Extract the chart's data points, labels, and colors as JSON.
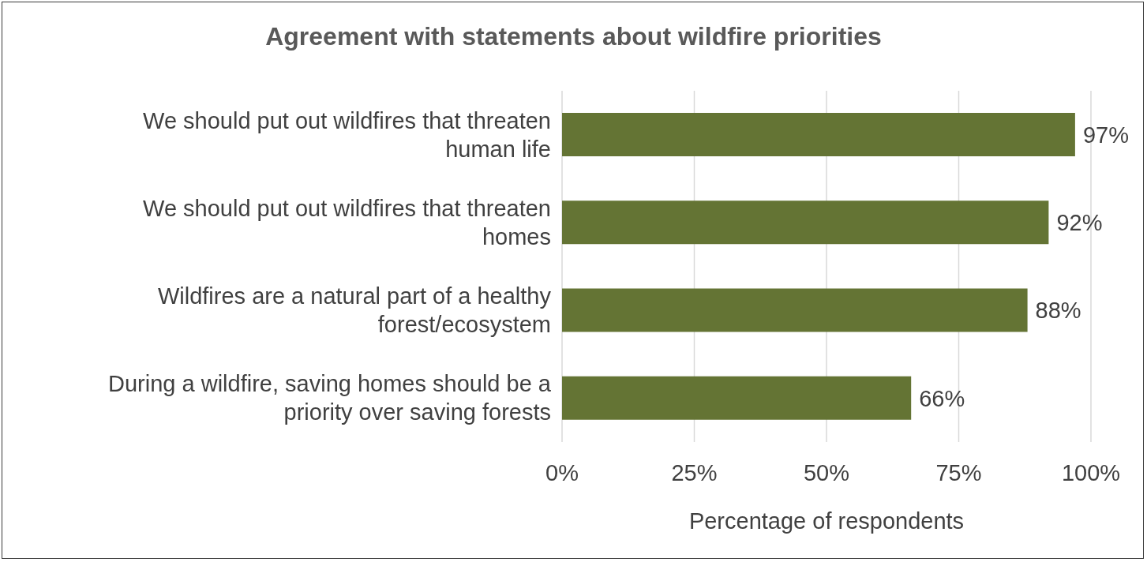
{
  "chart_data": {
    "type": "bar",
    "orientation": "horizontal",
    "title": "Agreement with statements about wildfire priorities",
    "xlabel": "Percentage of respondents",
    "categories": [
      "We should put out wildfires that threaten human life",
      "We should put out wildfires that threaten homes",
      "Wildfires are a natural part of a healthy forest/ecosystem",
      "During a wildfire, saving homes should be a priority over saving forests"
    ],
    "values": [
      97,
      92,
      88,
      66
    ],
    "color": "#647434",
    "value_labels": [
      "97%",
      "92%",
      "88%",
      "66%"
    ],
    "xlim": [
      0,
      100
    ],
    "xticks": [
      {
        "value": 0,
        "label": "0%"
      },
      {
        "value": 25,
        "label": "25%"
      },
      {
        "value": 50,
        "label": "50%"
      },
      {
        "value": 75,
        "label": "75%"
      },
      {
        "value": 100,
        "label": "100%"
      }
    ],
    "grid": "x",
    "legend": false
  }
}
